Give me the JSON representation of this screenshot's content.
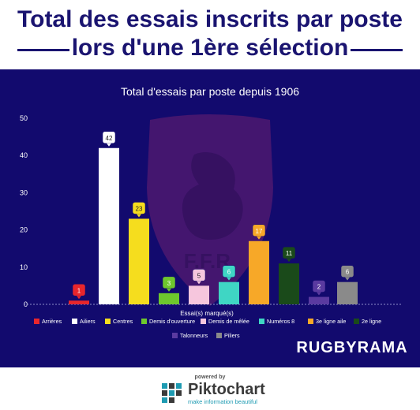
{
  "header": {
    "title_line1": "Total des essais inscrits par poste",
    "title_line2": "lors d'une 1ère sélection"
  },
  "chart_data": {
    "type": "bar",
    "title": "Total d'essais par poste depuis 1906",
    "xlabel": "Essai(s) marqué(s)",
    "ylabel": "",
    "ylim": [
      0,
      50
    ],
    "yticks": [
      0,
      10,
      20,
      30,
      40,
      50
    ],
    "categories": [
      "Arrières",
      "Ailiers",
      "Centres",
      "Demis d'ouverture",
      "Demis de mêlée",
      "Numéros 8",
      "3e ligne aile",
      "2e ligne",
      "Talonneurs",
      "Piliers"
    ],
    "values": [
      1,
      42,
      23,
      3,
      5,
      6,
      17,
      11,
      2,
      6
    ],
    "colors": [
      "#e8262c",
      "#ffffff",
      "#f5dd1e",
      "#6ec72d",
      "#f6c6dd",
      "#3fd6c4",
      "#f7a828",
      "#1a4a1a",
      "#5a3aa0",
      "#8a8a8a"
    ],
    "grid": false,
    "legend_position": "bottom"
  },
  "brand": {
    "name": "RUGBYRAMA"
  },
  "footer": {
    "powered_by": "powered by",
    "name": "Piktochart",
    "tagline": "make information beautiful"
  }
}
